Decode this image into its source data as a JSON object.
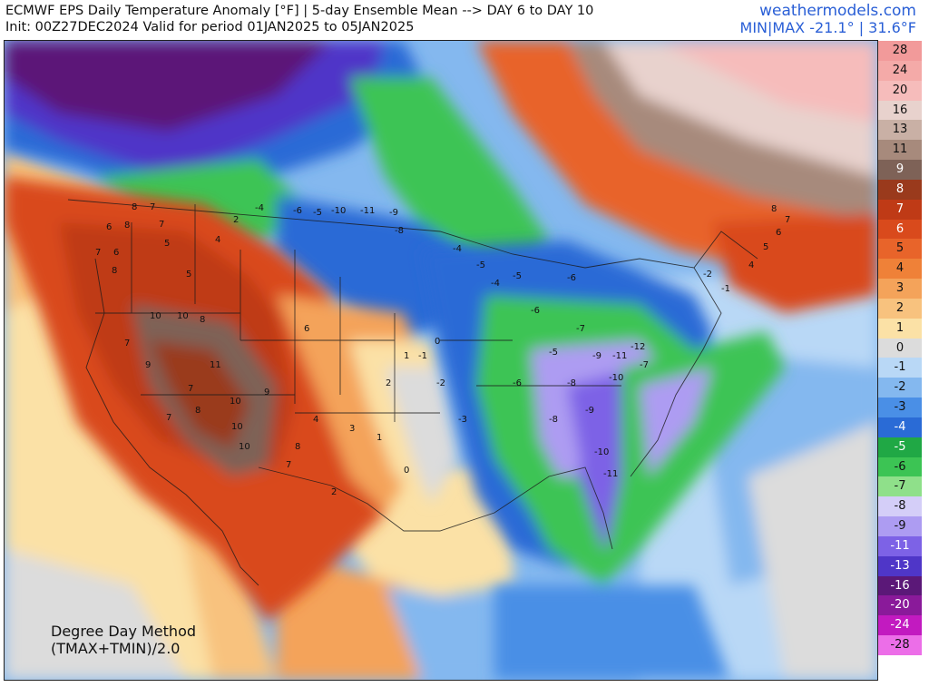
{
  "header": {
    "title": "ECMWF EPS Daily Temperature Anomaly [°F] | 5-day Ensemble Mean --> DAY 6 to DAY 10",
    "subtitle": "Init: 00Z27DEC2024 Valid for period 01JAN2025 to 05JAN2025",
    "site": "weathermodels.com",
    "minmax": "MIN|MAX -21.1° | 31.6°F"
  },
  "note": {
    "line1": "Degree Day Method",
    "line2": "(TMAX+TMIN)/2.0"
  },
  "legend": {
    "levels": [
      {
        "label": "28",
        "color": "#f29a9a"
      },
      {
        "label": "24",
        "color": "#f4aaa8"
      },
      {
        "label": "20",
        "color": "#f6bcbb"
      },
      {
        "label": "16",
        "color": "#e8d2cd"
      },
      {
        "label": "13",
        "color": "#c9b0a5"
      },
      {
        "label": "11",
        "color": "#a78a7c"
      },
      {
        "label": "9",
        "color": "#7e6257"
      },
      {
        "label": "8",
        "color": "#9a3a1c"
      },
      {
        "label": "7",
        "color": "#bf3a16"
      },
      {
        "label": "6",
        "color": "#d94a1c"
      },
      {
        "label": "5",
        "color": "#e8642a"
      },
      {
        "label": "4",
        "color": "#ef8138"
      },
      {
        "label": "3",
        "color": "#f4a35a"
      },
      {
        "label": "2",
        "color": "#f8c27e"
      },
      {
        "label": "1",
        "color": "#fbe1a6"
      },
      {
        "label": "0",
        "color": "#dcdcdc"
      },
      {
        "label": "-1",
        "color": "#b9d8f6"
      },
      {
        "label": "-2",
        "color": "#84b8ef"
      },
      {
        "label": "-3",
        "color": "#4a8fe6"
      },
      {
        "label": "-4",
        "color": "#2a6bd6"
      },
      {
        "label": "-5",
        "color": "#20a845"
      },
      {
        "label": "-6",
        "color": "#3cc454"
      },
      {
        "label": "-7",
        "color": "#8fe08a"
      },
      {
        "label": "-8",
        "color": "#d4cef8"
      },
      {
        "label": "-9",
        "color": "#ad9cf2"
      },
      {
        "label": "-11",
        "color": "#7d62e6"
      },
      {
        "label": "-13",
        "color": "#4f36c8"
      },
      {
        "label": "-16",
        "color": "#5b1878"
      },
      {
        "label": "-20",
        "color": "#8a1a9a"
      },
      {
        "label": "-24",
        "color": "#c21ac0"
      },
      {
        "label": "-28",
        "color": "#ec6ee8"
      }
    ]
  },
  "map_values": [
    "8",
    "7",
    "6",
    "8",
    "7",
    "7",
    "6",
    "5",
    "8",
    "4",
    "2",
    "5",
    "10",
    "10",
    "8",
    "7",
    "11",
    "9",
    "10",
    "9",
    "10",
    "7",
    "10",
    "8",
    "7",
    "-4",
    "-6",
    "-5",
    "-10",
    "-11",
    "-9",
    "-8",
    "-4",
    "-5",
    "-6",
    "-7",
    "-5",
    "-8",
    "-9",
    "-10",
    "-11",
    "-12",
    "-9",
    "-8",
    "-10",
    "-11",
    "-7",
    "-6",
    "-3",
    "-2",
    "-1",
    "0",
    "1",
    "2",
    "3",
    "0",
    "1",
    "2",
    "4",
    "6",
    "8",
    "7",
    "-4",
    "-5",
    "-6",
    "-2",
    "-1",
    "4",
    "5",
    "6",
    "7",
    "8"
  ]
}
